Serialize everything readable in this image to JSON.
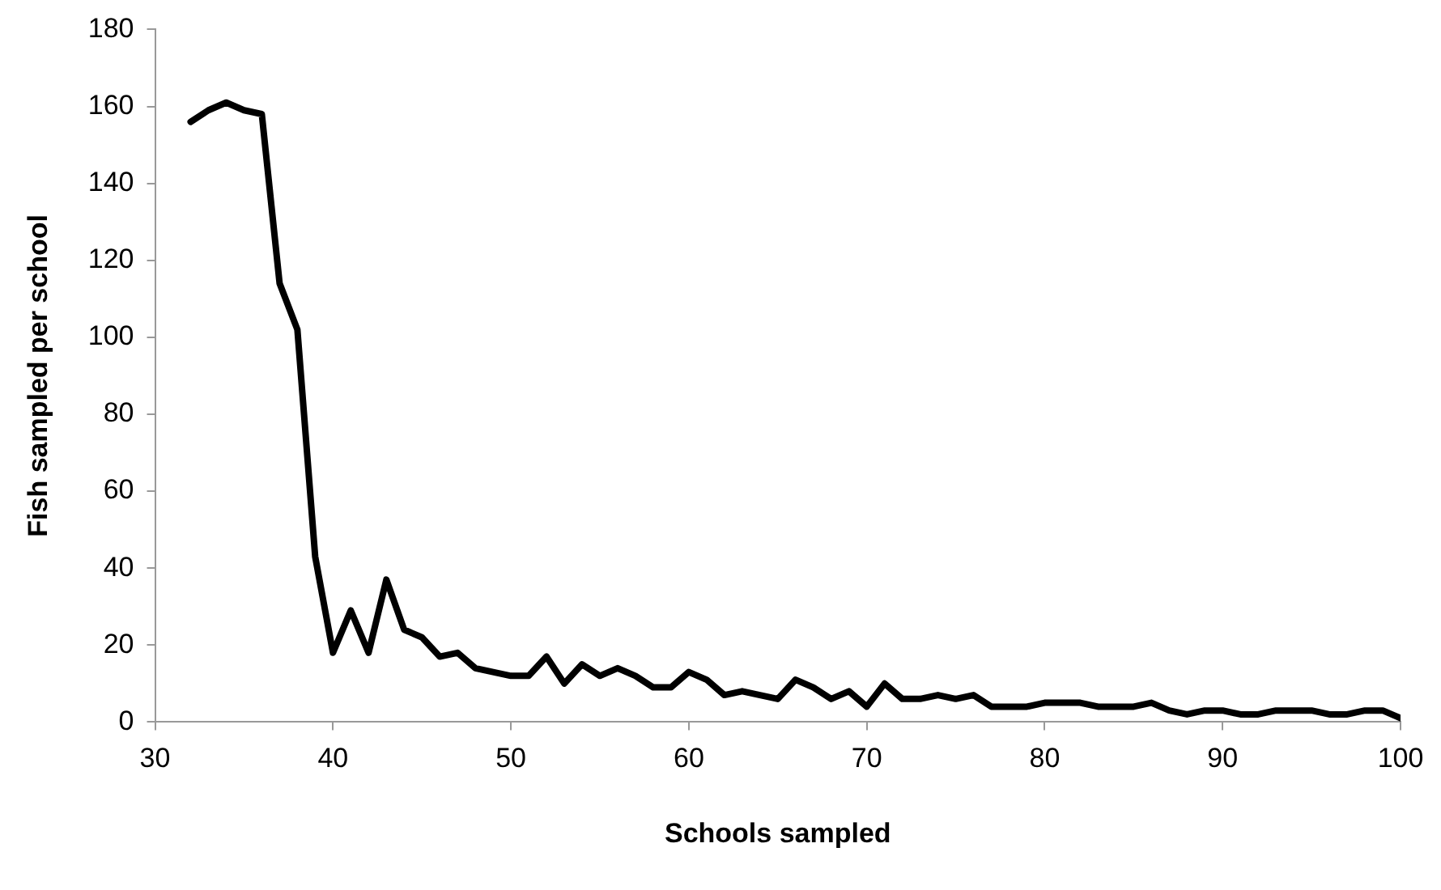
{
  "chart_data": {
    "type": "line",
    "xlabel": "Schools sampled",
    "ylabel": "Fish sampled per school",
    "color": "#000000",
    "x": [
      32,
      33,
      34,
      35,
      36,
      37,
      38,
      39,
      40,
      41,
      42,
      43,
      44,
      45,
      46,
      47,
      48,
      49,
      50,
      51,
      52,
      53,
      54,
      55,
      56,
      57,
      58,
      59,
      60,
      61,
      62,
      63,
      64,
      65,
      66,
      67,
      68,
      69,
      70,
      71,
      72,
      73,
      74,
      75,
      76,
      77,
      78,
      79,
      80,
      81,
      82,
      83,
      84,
      85,
      86,
      87,
      88,
      89,
      90,
      91,
      92,
      93,
      94,
      95,
      96,
      97,
      98,
      99,
      100
    ],
    "values": [
      156,
      159,
      161,
      159,
      158,
      114,
      102,
      43,
      18,
      29,
      18,
      37,
      24,
      22,
      17,
      18,
      14,
      13,
      12,
      12,
      17,
      10,
      15,
      12,
      14,
      12,
      9,
      9,
      13,
      11,
      7,
      8,
      7,
      6,
      11,
      9,
      6,
      8,
      4,
      10,
      6,
      6,
      7,
      6,
      7,
      4,
      4,
      4,
      5,
      5,
      5,
      4,
      4,
      4,
      5,
      3,
      2,
      3,
      3,
      2,
      2,
      3,
      3,
      3,
      2,
      2,
      3,
      3,
      1
    ],
    "xlim": [
      30,
      100
    ],
    "xticks": [
      30,
      40,
      50,
      60,
      70,
      80,
      90,
      100
    ],
    "ylim": [
      0,
      180
    ],
    "yticks": [
      0,
      20,
      40,
      60,
      80,
      100,
      120,
      140,
      160,
      180
    ],
    "grid": false,
    "legend": false,
    "marker": "none",
    "line_style": "solid"
  }
}
